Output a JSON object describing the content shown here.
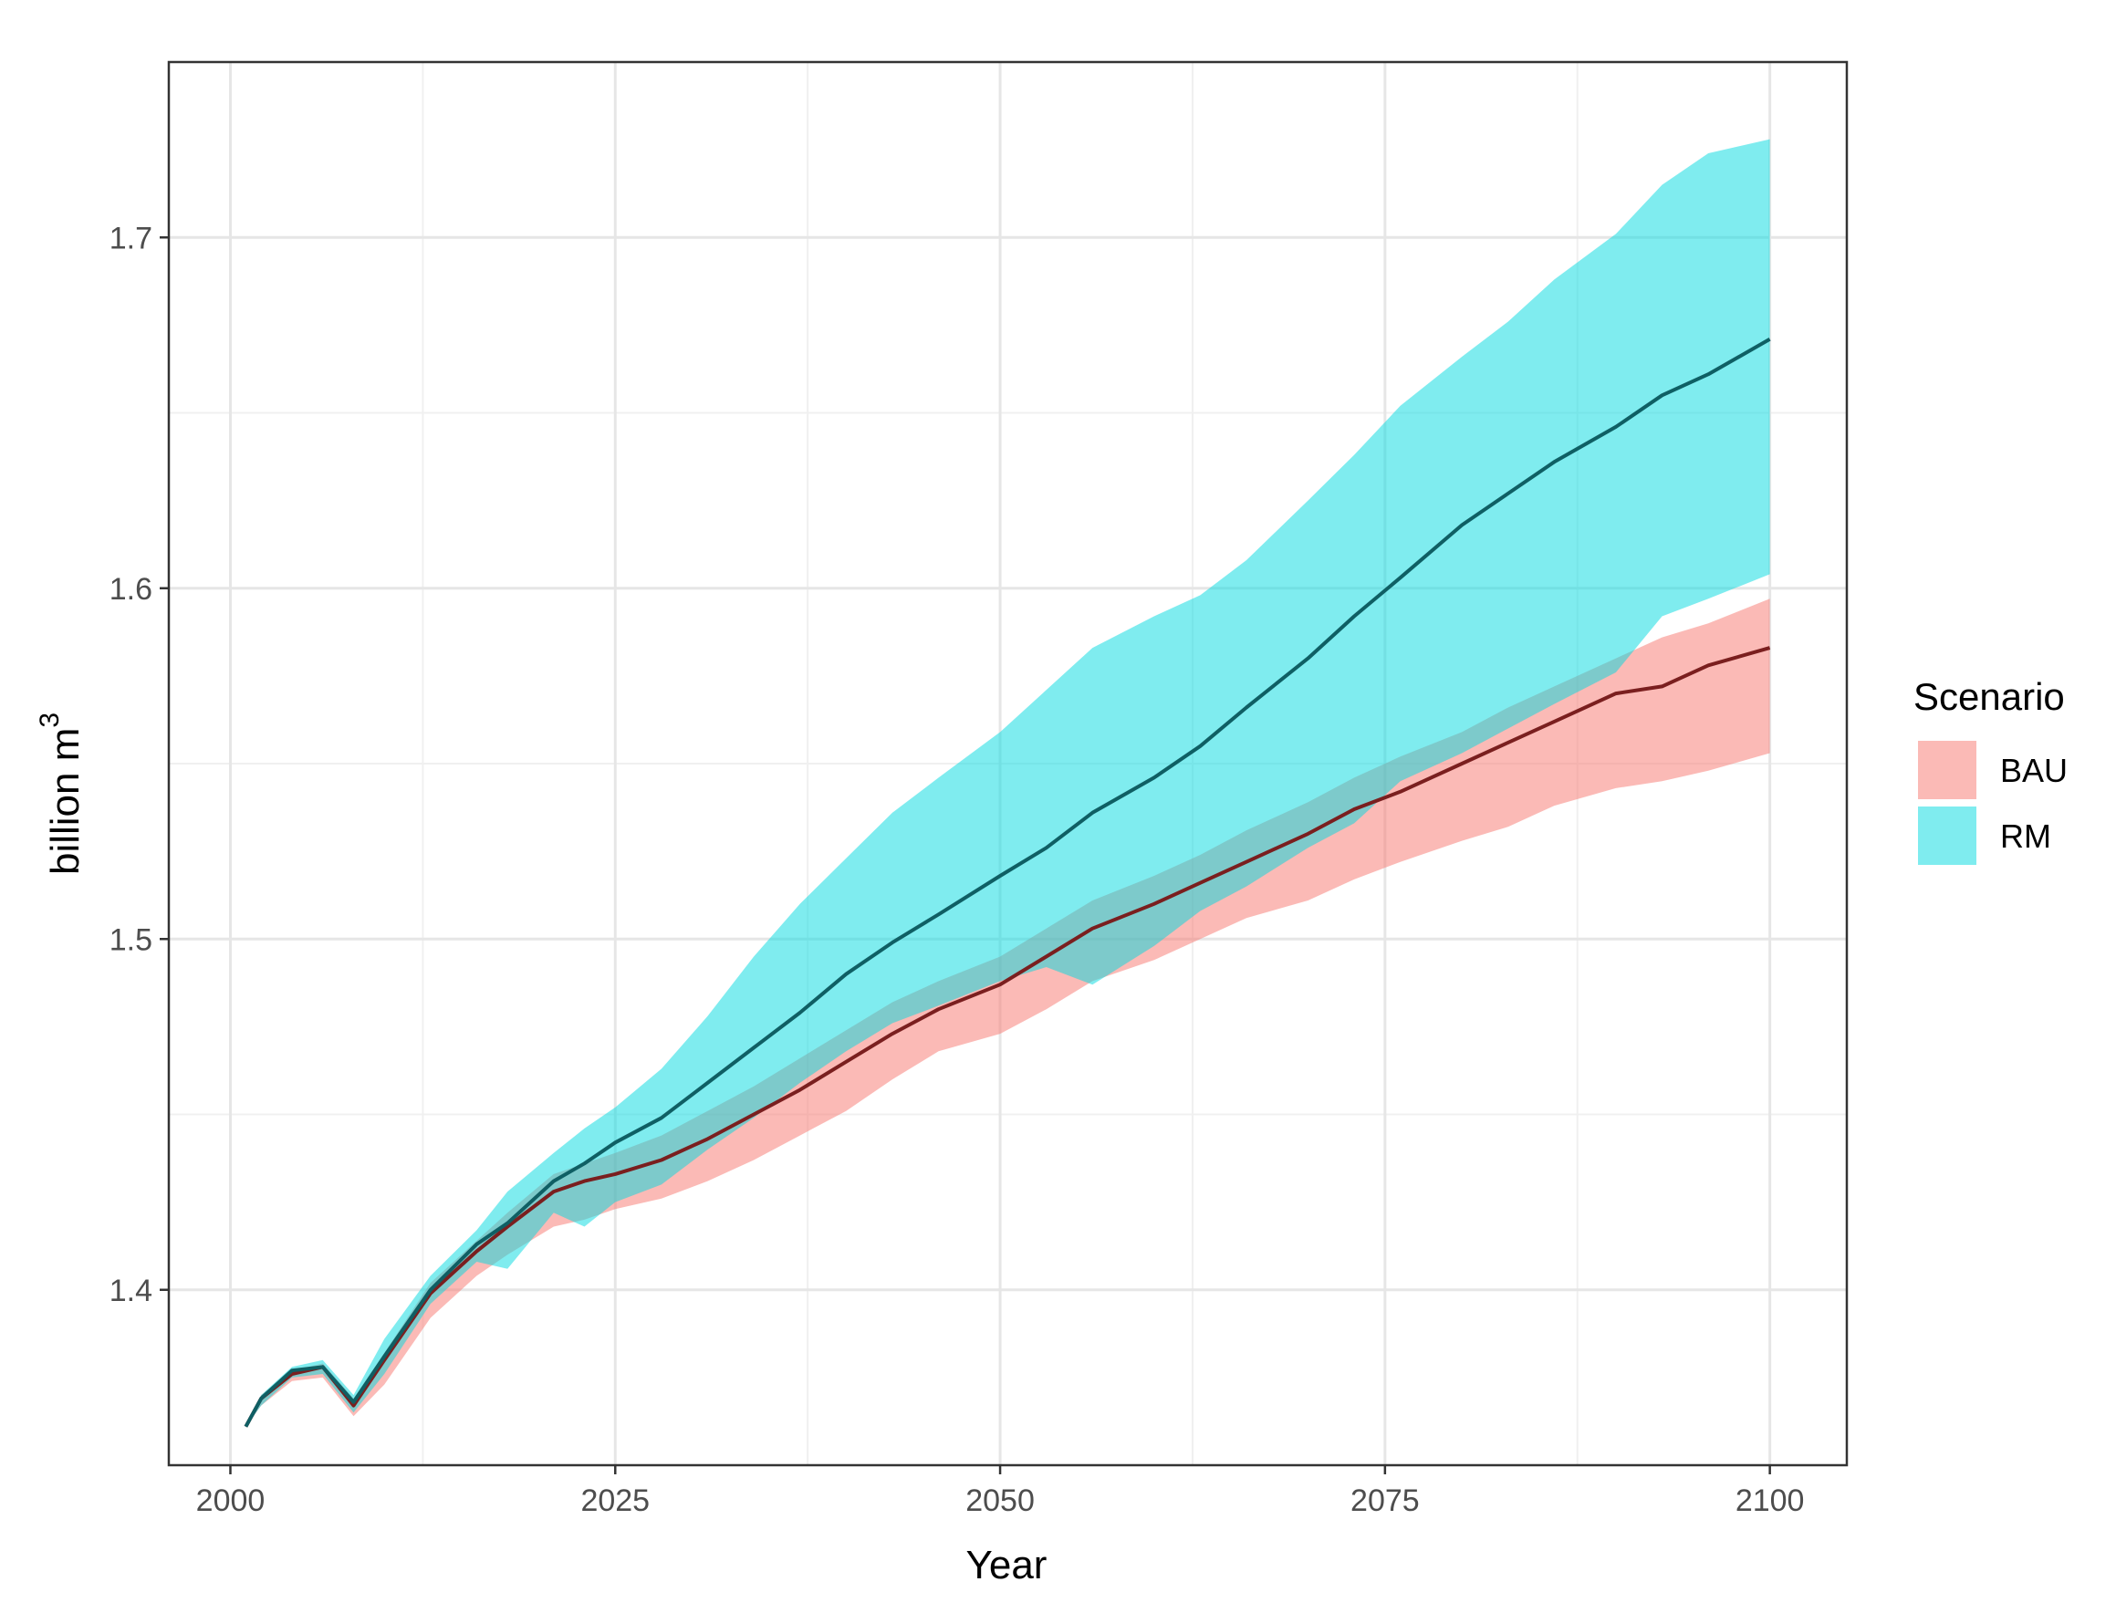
{
  "chart_data": {
    "type": "line",
    "title": "",
    "xlabel": "Year",
    "ylabel": "billion m",
    "ylabel_superscript": "3",
    "xlim": [
      1996,
      2105
    ],
    "ylim": [
      1.35,
      1.75
    ],
    "x_ticks": [
      2000,
      2025,
      2050,
      2075,
      2100
    ],
    "x_tick_labels": [
      "2000",
      "2025",
      "2050",
      "2075",
      "2100"
    ],
    "y_ticks": [
      1.4,
      1.5,
      1.6,
      1.7
    ],
    "y_tick_labels": [
      "1.4",
      "1.5",
      "1.6",
      "1.7"
    ],
    "grid": true,
    "legend": {
      "title": "Scenario",
      "position": "right",
      "entries": [
        "BAU",
        "RM"
      ]
    },
    "x": [
      2001,
      2002,
      2004,
      2006,
      2008,
      2010,
      2013,
      2016,
      2018,
      2021,
      2023,
      2025,
      2028,
      2031,
      2034,
      2037,
      2040,
      2043,
      2046,
      2050,
      2053,
      2056,
      2060,
      2063,
      2066,
      2070,
      2073,
      2076,
      2080,
      2083,
      2086,
      2090,
      2093,
      2096,
      2100
    ],
    "series": [
      {
        "name": "BAU",
        "color": "#F8766D",
        "fill": "#F8766D",
        "mean": [
          1.361,
          1.369,
          1.376,
          1.378,
          1.367,
          1.38,
          1.399,
          1.411,
          1.418,
          1.428,
          1.431,
          1.433,
          1.437,
          1.443,
          1.45,
          1.457,
          1.465,
          1.473,
          1.48,
          1.487,
          1.495,
          1.503,
          1.51,
          1.516,
          1.522,
          1.53,
          1.537,
          1.542,
          1.55,
          1.556,
          1.562,
          1.57,
          1.572,
          1.578,
          1.583
        ],
        "lower": [
          1.361,
          1.367,
          1.374,
          1.375,
          1.364,
          1.373,
          1.392,
          1.404,
          1.41,
          1.418,
          1.42,
          1.423,
          1.426,
          1.431,
          1.437,
          1.444,
          1.451,
          1.46,
          1.468,
          1.473,
          1.48,
          1.488,
          1.494,
          1.5,
          1.506,
          1.511,
          1.517,
          1.522,
          1.528,
          1.532,
          1.538,
          1.543,
          1.545,
          1.548,
          1.553
        ],
        "upper": [
          1.361,
          1.37,
          1.377,
          1.379,
          1.369,
          1.382,
          1.402,
          1.414,
          1.422,
          1.433,
          1.436,
          1.439,
          1.444,
          1.451,
          1.458,
          1.466,
          1.474,
          1.482,
          1.488,
          1.495,
          1.503,
          1.511,
          1.518,
          1.524,
          1.531,
          1.539,
          1.546,
          1.552,
          1.559,
          1.566,
          1.572,
          1.58,
          1.586,
          1.59,
          1.597
        ]
      },
      {
        "name": "RM",
        "color": "#00BFC4",
        "fill": "#00D9DF",
        "mean": [
          1.361,
          1.369,
          1.377,
          1.378,
          1.368,
          1.381,
          1.4,
          1.413,
          1.419,
          1.431,
          1.436,
          1.442,
          1.449,
          1.459,
          1.469,
          1.479,
          1.49,
          1.499,
          1.507,
          1.518,
          1.526,
          1.536,
          1.546,
          1.555,
          1.566,
          1.58,
          1.592,
          1.603,
          1.618,
          1.627,
          1.636,
          1.646,
          1.655,
          1.661,
          1.671
        ],
        "lower": [
          1.361,
          1.367,
          1.375,
          1.376,
          1.365,
          1.376,
          1.396,
          1.408,
          1.406,
          1.422,
          1.418,
          1.425,
          1.43,
          1.44,
          1.449,
          1.459,
          1.468,
          1.476,
          1.481,
          1.488,
          1.492,
          1.487,
          1.498,
          1.508,
          1.515,
          1.526,
          1.533,
          1.545,
          1.553,
          1.56,
          1.567,
          1.576,
          1.592,
          1.597,
          1.604
        ],
        "upper": [
          1.361,
          1.37,
          1.378,
          1.38,
          1.37,
          1.386,
          1.404,
          1.417,
          1.428,
          1.439,
          1.446,
          1.452,
          1.463,
          1.478,
          1.495,
          1.51,
          1.523,
          1.536,
          1.546,
          1.559,
          1.571,
          1.583,
          1.592,
          1.598,
          1.608,
          1.625,
          1.638,
          1.652,
          1.666,
          1.676,
          1.688,
          1.701,
          1.715,
          1.724,
          1.728
        ]
      }
    ]
  }
}
